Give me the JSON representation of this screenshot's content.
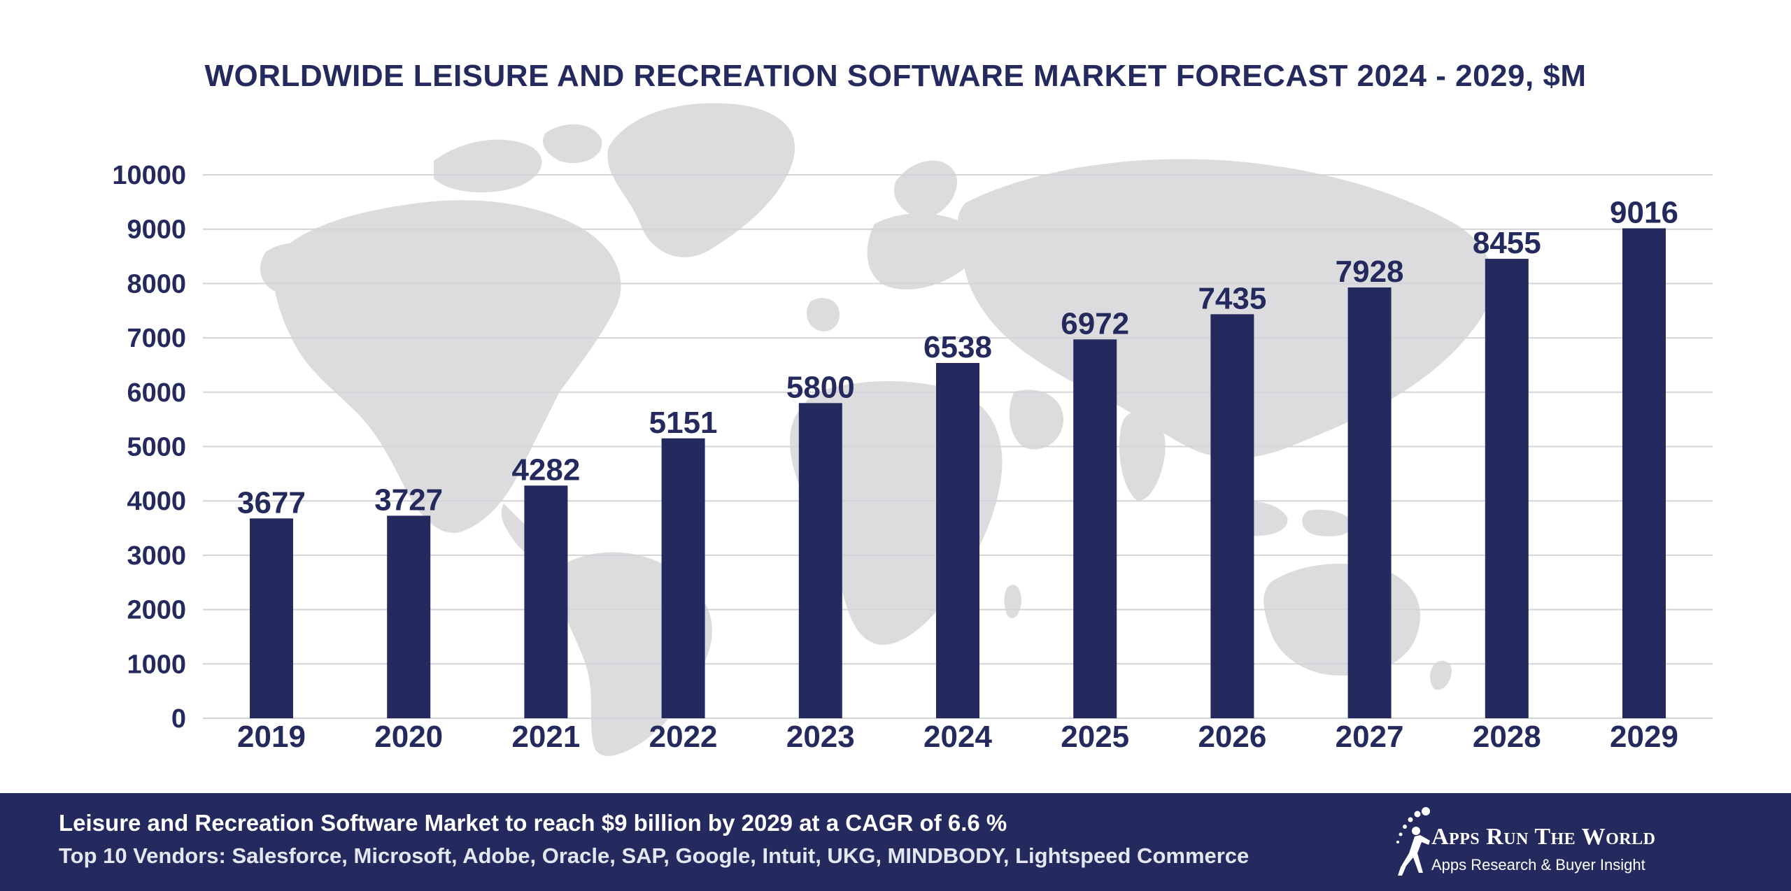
{
  "chart_data": {
    "type": "bar",
    "title": "WORLDWIDE LEISURE AND RECREATION SOFTWARE MARKET FORECAST 2024 - 2029, $M",
    "categories": [
      "2019",
      "2020",
      "2021",
      "2022",
      "2023",
      "2024",
      "2025",
      "2026",
      "2027",
      "2028",
      "2029"
    ],
    "values": [
      3677,
      3727,
      4282,
      5151,
      5800,
      6538,
      6972,
      7435,
      7928,
      8455,
      9016
    ],
    "xlabel": "",
    "ylabel": "",
    "ylim": [
      0,
      10000
    ],
    "yticks": [
      "0",
      "1000",
      "2000",
      "3000",
      "4000",
      "5000",
      "6000",
      "7000",
      "8000",
      "9000",
      "10000"
    ],
    "grid": true,
    "bar_color": "#242a5e"
  },
  "footer": {
    "headline": "Leisure and Recreation Software Market to reach $9 billion by 2029 at a CAGR of 6.6 %",
    "vendors": "Top 10 Vendors: Salesforce, Microsoft, Adobe, Oracle, SAP, Google, Intuit, UKG, MINDBODY, Lightspeed Commerce"
  },
  "logo": {
    "name": "Apps Run The World",
    "tagline": "Apps Research & Buyer Insight"
  },
  "colors": {
    "navy": "#242a5e",
    "grid": "#d4d4d8",
    "map": "#dcdcde"
  }
}
